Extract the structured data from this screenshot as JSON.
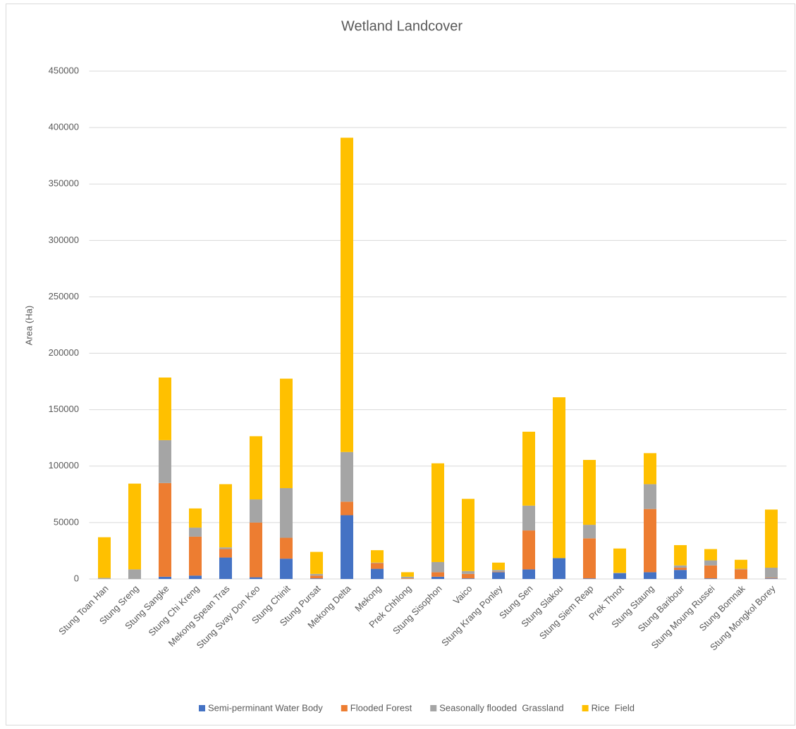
{
  "chart_data": {
    "type": "stacked_bar",
    "title": "Wetland Landcover",
    "y_label": "Area (Ha)",
    "categories": [
      "Stung Toan Han",
      "Stung Sreng",
      "Stung Sangke",
      "Stung Chi Kreng",
      "Mekong Spean Tras",
      "Stung Svay Don Keo",
      "Stung Chinit",
      "Stung Pursat",
      "Mekong Delta",
      "Mekong",
      "Prek Chhlong",
      "Stung Sisophon",
      "Vaico",
      "Stung Krang Ponley",
      "Stung Sen",
      "Stung Slakou",
      "Stung Siem Reap",
      "Prek Thnot",
      "Stung Staung",
      "Stung Baribour",
      "Stung Moung Russei",
      "Stung Bomnak",
      "Stung Mongkol Borey"
    ],
    "series": [
      {
        "name": "Semi-perminant Water Body",
        "color": "#4472c4",
        "values": [
          0,
          0,
          2000,
          3000,
          19000,
          1500,
          18000,
          500,
          56500,
          9000,
          0,
          2000,
          500,
          6000,
          8500,
          18500,
          500,
          5000,
          6000,
          8000,
          500,
          0,
          500
        ]
      },
      {
        "name": "Flooded Forest",
        "color": "#ed7d31",
        "values": [
          0,
          0,
          83000,
          34500,
          7500,
          48500,
          18500,
          2500,
          12000,
          5000,
          500,
          4000,
          4000,
          500,
          34500,
          0,
          35500,
          0,
          56000,
          2000,
          11500,
          8500,
          500
        ]
      },
      {
        "name": "Seasonally flooded  Grassland",
        "color": "#a5a5a5",
        "values": [
          1000,
          8500,
          38000,
          8000,
          1500,
          20500,
          44000,
          1500,
          44000,
          500,
          1500,
          9000,
          2500,
          1500,
          22000,
          0,
          12000,
          500,
          22000,
          2000,
          4500,
          500,
          9000
        ]
      },
      {
        "name": "Rice  Field",
        "color": "#ffc000",
        "values": [
          36000,
          76000,
          55500,
          17000,
          56000,
          56000,
          97000,
          19500,
          278500,
          11000,
          4000,
          87500,
          64000,
          6500,
          65500,
          142500,
          57500,
          21500,
          27500,
          18000,
          10000,
          8000,
          51500
        ]
      }
    ],
    "ylim": [
      0,
      450000
    ],
    "yticks": [
      0,
      50000,
      100000,
      150000,
      200000,
      250000,
      300000,
      350000,
      400000,
      450000
    ],
    "grid": true,
    "legend": "bottom"
  }
}
